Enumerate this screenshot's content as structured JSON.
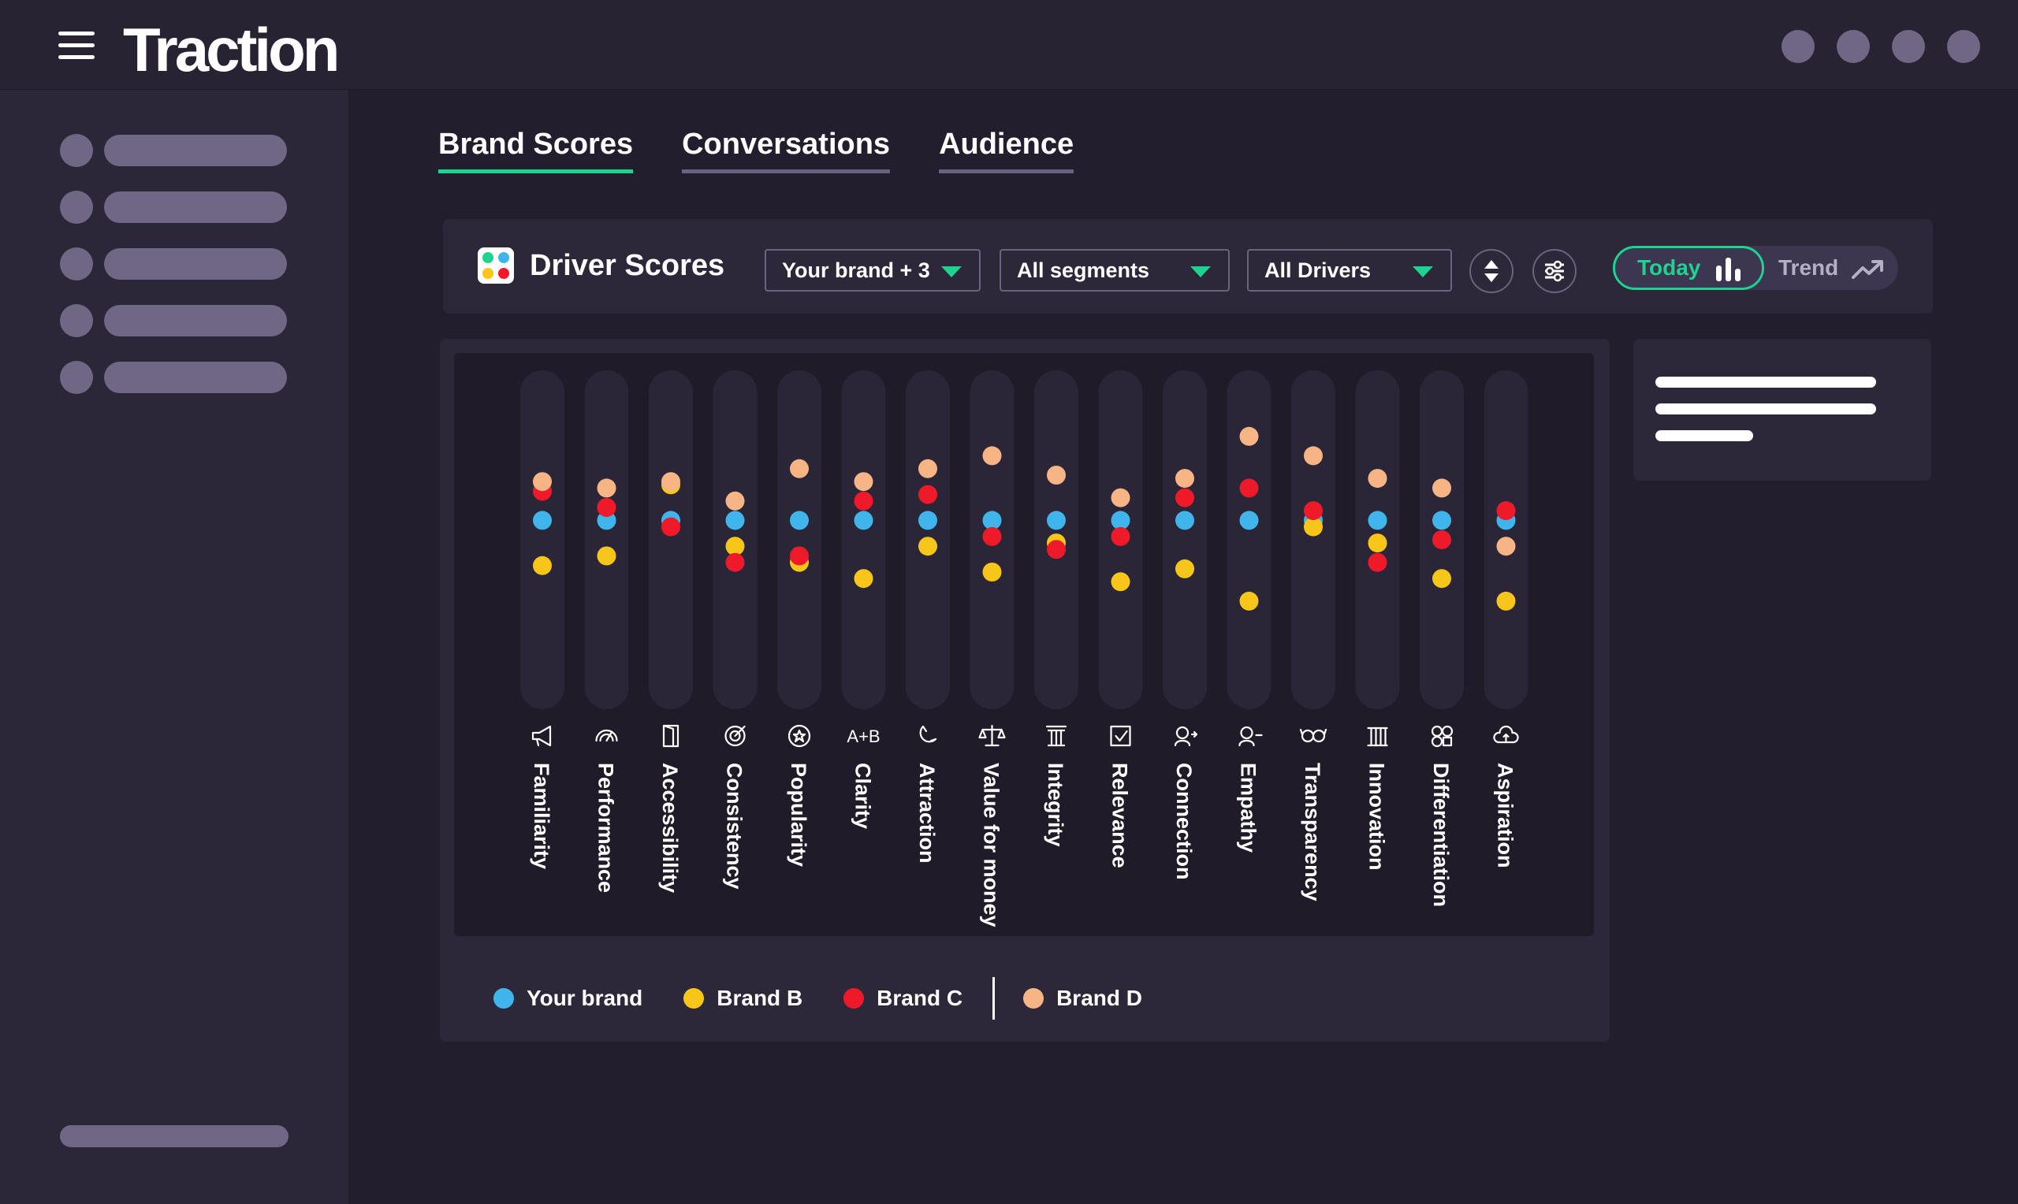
{
  "app": {
    "title": "Traction"
  },
  "tabs": [
    {
      "label": "Brand Scores",
      "active": true
    },
    {
      "label": "Conversations",
      "active": false
    },
    {
      "label": "Audience",
      "active": false
    }
  ],
  "toolbar": {
    "title": "Driver Scores",
    "brand_select": "Your brand + 3",
    "segment_select": "All segments",
    "driver_select": "All Drivers",
    "sort_icon": "sort-updown-icon",
    "filter_icon": "sliders-icon",
    "view_toggle": {
      "today": "Today",
      "trend": "Trend",
      "selected": "Today"
    }
  },
  "colors": {
    "accent": "#1ed28f",
    "your_brand": "#3fb5ec",
    "brand_b": "#f7c619",
    "brand_c": "#ee1a2a",
    "brand_d": "#f7b586"
  },
  "legend": [
    {
      "label": "Your brand",
      "color": "#3fb5ec"
    },
    {
      "label": "Brand B",
      "color": "#f7c619"
    },
    {
      "label": "Brand C",
      "color": "#ee1a2a"
    },
    {
      "label": "Brand D",
      "color": "#f7b586"
    }
  ],
  "chart_data": {
    "type": "scatter",
    "categories": [
      "Familiarity",
      "Performance",
      "Accessibility",
      "Consistency",
      "Popularity",
      "Clarity",
      "Attraction",
      "Value for money",
      "Integrity",
      "Relevance",
      "Connection",
      "Empathy",
      "Transparency",
      "Innovation",
      "Differentiation",
      "Aspiration"
    ],
    "icons": [
      "megaphone-icon",
      "gauge-icon",
      "door-icon",
      "target-icon",
      "star-badge-icon",
      "a-plus-b-icon",
      "magnet-icon",
      "scales-icon",
      "pillar-icon",
      "checkbox-icon",
      "person-connect-icon",
      "person-heart-icon",
      "glasses-icon",
      "abacus-icon",
      "shapes-icon",
      "cloud-rocket-icon"
    ],
    "ylim": [
      0,
      100
    ],
    "series": [
      {
        "name": "Your brand",
        "color": "#3fb5ec",
        "values": [
          56,
          56,
          56,
          56,
          56,
          56,
          56,
          56,
          56,
          56,
          56,
          56,
          56,
          56,
          56,
          56
        ]
      },
      {
        "name": "Brand B",
        "color": "#f7c619",
        "values": [
          42,
          45,
          67,
          48,
          43,
          38,
          48,
          40,
          49,
          37,
          41,
          31,
          54,
          49,
          38,
          31
        ]
      },
      {
        "name": "Brand C",
        "color": "#ee1a2a",
        "values": [
          65,
          60,
          54,
          43,
          45,
          62,
          64,
          51,
          47,
          51,
          63,
          66,
          59,
          43,
          50,
          59
        ]
      },
      {
        "name": "Brand D",
        "color": "#f7b586",
        "values": [
          68,
          66,
          68,
          62,
          72,
          68,
          72,
          76,
          70,
          63,
          69,
          82,
          76,
          69,
          66,
          48
        ]
      }
    ]
  }
}
